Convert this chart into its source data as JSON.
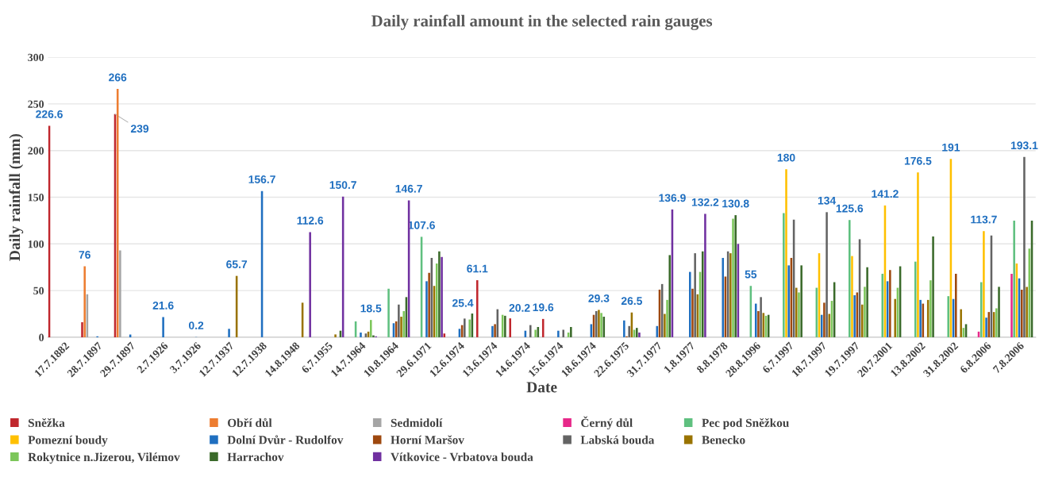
{
  "chart_data": {
    "type": "bar",
    "title": "Daily rainfall amount in the selected rain gauges",
    "xlabel": "Date",
    "ylabel": "Daily rainfall (mm)",
    "categories": [
      "17.7.1882",
      "28.7.1897",
      "29.7.1897",
      "2.7.1926",
      "3.7.1926",
      "12.7.1937",
      "12.7.1938",
      "14.8.1948",
      "6.7.1955",
      "14.7.1964",
      "10.8.1964",
      "29.6.1971",
      "12.6.1974",
      "13.6.1974",
      "14.6.1974",
      "15.6.1974",
      "18.6.1974",
      "22.6.1975",
      "31.7.1977",
      "1.8.1977",
      "8.8.1978",
      "28.8.1996",
      "6.7.1997",
      "18.7.1997",
      "19.7.1997",
      "20.7.2001",
      "13.8.2002",
      "31.8.2002",
      "6.8.2006",
      "7.8.2006"
    ],
    "ylim": [
      0,
      300
    ],
    "yticks": [
      0,
      50,
      100,
      150,
      200,
      250,
      300
    ],
    "grid": "y",
    "legend": "bottom",
    "series": [
      {
        "name": "Sněžka",
        "color": "#c0272d",
        "values": [
          226.6,
          16,
          239,
          null,
          null,
          null,
          null,
          null,
          null,
          null,
          null,
          null,
          4,
          61.1,
          20.2,
          19.6,
          null,
          null,
          null,
          null,
          null,
          null,
          null,
          null,
          null,
          null,
          null,
          null,
          null,
          null
        ],
        "value_labels": [
          "226.6",
          null,
          "239",
          null,
          null,
          null,
          null,
          null,
          null,
          null,
          null,
          null,
          null,
          "61.1",
          "20.2",
          "19.6",
          null,
          null,
          null,
          null,
          null,
          null,
          null,
          null,
          null,
          null,
          null,
          null,
          null,
          null
        ]
      },
      {
        "name": "Obří důl",
        "color": "#ed7d31",
        "values": [
          null,
          76,
          266,
          null,
          null,
          null,
          null,
          null,
          null,
          null,
          null,
          null,
          null,
          null,
          null,
          null,
          null,
          null,
          null,
          null,
          null,
          null,
          null,
          null,
          null,
          null,
          null,
          null,
          null,
          null
        ],
        "value_labels": [
          null,
          "76",
          "266",
          null,
          null,
          null,
          null,
          null,
          null,
          null,
          null,
          null,
          null,
          null,
          null,
          null,
          null,
          null,
          null,
          null,
          null,
          null,
          null,
          null,
          null,
          null,
          null,
          null,
          null,
          null
        ]
      },
      {
        "name": "Sedmidolí",
        "color": "#a5a5a5",
        "values": [
          null,
          46,
          93,
          null,
          null,
          null,
          null,
          null,
          null,
          null,
          null,
          null,
          null,
          null,
          null,
          null,
          null,
          null,
          null,
          null,
          null,
          null,
          null,
          null,
          null,
          null,
          null,
          null,
          null,
          null
        ]
      },
      {
        "name": "Černý důl",
        "color": "#e7298a",
        "values": [
          null,
          null,
          null,
          null,
          null,
          null,
          null,
          null,
          null,
          null,
          null,
          null,
          null,
          null,
          null,
          null,
          null,
          null,
          null,
          null,
          null,
          null,
          null,
          null,
          null,
          null,
          null,
          null,
          6,
          68
        ]
      },
      {
        "name": "Pec pod Sněžkou",
        "color": "#5fc07f",
        "values": [
          null,
          null,
          null,
          null,
          null,
          null,
          null,
          null,
          null,
          17,
          52,
          107.6,
          null,
          null,
          null,
          null,
          null,
          null,
          null,
          null,
          null,
          55,
          133,
          53,
          125.6,
          68,
          81,
          44,
          59,
          125
        ],
        "value_labels": [
          null,
          null,
          null,
          null,
          null,
          null,
          null,
          null,
          null,
          null,
          null,
          "107.6",
          null,
          null,
          null,
          null,
          null,
          null,
          null,
          null,
          null,
          "55",
          null,
          null,
          "125.6",
          null,
          null,
          null,
          null,
          null
        ]
      },
      {
        "name": "Pomezní boudy",
        "color": "#ffc000",
        "values": [
          null,
          null,
          null,
          null,
          null,
          null,
          null,
          null,
          null,
          null,
          null,
          null,
          null,
          null,
          null,
          null,
          null,
          null,
          null,
          null,
          null,
          null,
          180,
          90,
          87,
          141.2,
          176.5,
          191,
          113.7,
          79
        ],
        "value_labels": [
          null,
          null,
          null,
          null,
          null,
          null,
          null,
          null,
          null,
          null,
          null,
          null,
          null,
          null,
          null,
          null,
          null,
          null,
          null,
          null,
          null,
          null,
          "180",
          null,
          null,
          "141.2",
          "176.5",
          "191",
          "113.7",
          null
        ]
      },
      {
        "name": "Dolní Dvůr - Rudolfov",
        "color": "#1f6fc0",
        "values": [
          null,
          1,
          3,
          21.6,
          0.2,
          9,
          156.7,
          null,
          null,
          5,
          15,
          60,
          9,
          12,
          7,
          7,
          14,
          18,
          12,
          70,
          85,
          36,
          77,
          24,
          45,
          60,
          40,
          41,
          21,
          63
        ],
        "value_labels": [
          null,
          null,
          null,
          "21.6",
          "0.2",
          null,
          "156.7",
          null,
          null,
          null,
          null,
          null,
          null,
          null,
          null,
          null,
          null,
          null,
          null,
          null,
          null,
          null,
          null,
          null,
          null,
          null,
          null,
          null,
          null,
          null
        ]
      },
      {
        "name": "Horní Maršov",
        "color": "#9e480e",
        "values": [
          null,
          null,
          null,
          null,
          null,
          null,
          null,
          null,
          null,
          null,
          17,
          69,
          13,
          14,
          null,
          null,
          24,
          1,
          51,
          52,
          65,
          28,
          85,
          37,
          48,
          72,
          36,
          68,
          27,
          51
        ]
      },
      {
        "name": "Labská bouda",
        "color": "#636363",
        "values": [
          null,
          null,
          null,
          null,
          null,
          null,
          null,
          null,
          null,
          4,
          35,
          85,
          20,
          30,
          13,
          8,
          28,
          12,
          57,
          90,
          92,
          43,
          126,
          134,
          105,
          null,
          null,
          null,
          109,
          193.1
        ],
        "value_labels": [
          null,
          null,
          null,
          null,
          null,
          null,
          null,
          null,
          null,
          null,
          null,
          null,
          null,
          null,
          null,
          null,
          null,
          null,
          null,
          null,
          null,
          null,
          null,
          "134",
          null,
          null,
          null,
          null,
          null,
          "193.1"
        ]
      },
      {
        "name": "Benecko",
        "color": "#997300",
        "values": [
          null,
          null,
          null,
          null,
          null,
          65.7,
          null,
          37,
          3,
          6,
          22,
          55,
          null,
          null,
          null,
          null,
          29.3,
          26.5,
          25,
          46,
          90,
          26,
          53,
          25,
          35,
          41,
          40,
          30,
          27,
          54
        ],
        "value_labels": [
          null,
          null,
          null,
          null,
          null,
          "65.7",
          null,
          null,
          null,
          null,
          null,
          null,
          null,
          null,
          null,
          null,
          "29.3",
          "26.5",
          null,
          null,
          null,
          null,
          null,
          null,
          null,
          null,
          null,
          null,
          null,
          null
        ]
      },
      {
        "name": "Rokytnice n.Jizerou, Vilémov",
        "color": "#7cc65a",
        "values": [
          null,
          null,
          null,
          null,
          null,
          null,
          null,
          null,
          null,
          18.5,
          28,
          79,
          19,
          24,
          8,
          5,
          26,
          8,
          40,
          70,
          127,
          23,
          48,
          39,
          54,
          53,
          61,
          10,
          31,
          95
        ],
        "value_labels": [
          null,
          null,
          null,
          null,
          null,
          null,
          null,
          null,
          null,
          "18.5",
          null,
          null,
          null,
          null,
          null,
          null,
          null,
          null,
          null,
          null,
          null,
          null,
          null,
          null,
          null,
          null,
          null,
          null,
          null,
          null
        ]
      },
      {
        "name": "Harrachov",
        "color": "#3a6a2a",
        "values": [
          null,
          null,
          null,
          null,
          null,
          null,
          null,
          null,
          7,
          2,
          43,
          92,
          25.4,
          23,
          11,
          11,
          22,
          10,
          88,
          92,
          130.8,
          24,
          77,
          59,
          75,
          76,
          108,
          14,
          54,
          125
        ],
        "value_labels": [
          null,
          null,
          null,
          null,
          null,
          null,
          null,
          null,
          null,
          null,
          null,
          null,
          "25.4",
          null,
          null,
          null,
          null,
          null,
          null,
          null,
          "130.8",
          null,
          null,
          null,
          null,
          null,
          null,
          null,
          null,
          null
        ]
      },
      {
        "name": "Vítkovice - Vrbatova bouda",
        "color": "#7030a0",
        "values": [
          null,
          null,
          null,
          null,
          null,
          null,
          null,
          112.6,
          150.7,
          1,
          146.7,
          86,
          null,
          null,
          null,
          null,
          null,
          5,
          136.9,
          132.2,
          100,
          null,
          null,
          null,
          null,
          null,
          null,
          null,
          null,
          null
        ],
        "value_labels": [
          null,
          null,
          null,
          null,
          null,
          null,
          null,
          "112.6",
          "150.7",
          null,
          "146.7",
          null,
          null,
          null,
          null,
          null,
          null,
          null,
          "136.9",
          "132.2",
          null,
          null,
          null,
          null,
          null,
          null,
          null,
          null,
          null,
          null
        ]
      }
    ]
  }
}
